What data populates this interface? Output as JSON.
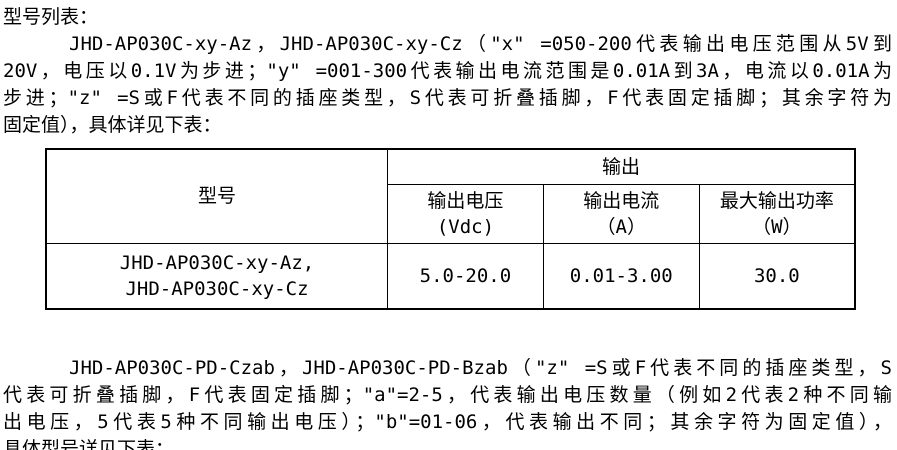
{
  "colors": {
    "text": "#000000",
    "page_background": "#ffffff",
    "table_border": "#000000"
  },
  "doc": {
    "heading": "型号列表：",
    "para1": {
      "lines": [
        "JHD-AP030C-xy-Az，JHD-AP030C-xy-Cz（\"x\" =050-200代表输出电压范围从5V到",
        "20V，电压以0.1V为步进；\"y\" =001-300代表输出电流范围是0.01A到3A，电流以0.01A为",
        "步进；\"z\" =S或F代表不同的插座类型，S代表可折叠插脚，F代表固定插脚；其余字符为",
        "固定值），具体详见下表："
      ]
    },
    "table": {
      "model_column_header": "型号",
      "output_group_header": "输出",
      "sub_headers": [
        {
          "line1": "输出电压",
          "line2": "(Vdc)"
        },
        {
          "line1": "输出电流",
          "line2": "（A）"
        },
        {
          "line1": "最大输出功率",
          "line2": "（W）"
        }
      ],
      "rows": [
        {
          "model_line1": "JHD-AP030C-xy-Az,",
          "model_line2": "JHD-AP030C-xy-Cz",
          "voltage": "5.0-20.0",
          "current": "0.01-3.00",
          "power": "30.0"
        }
      ]
    },
    "para2": {
      "lines": [
        "JHD-AP030C-PD-Czab，JHD-AP030C-PD-Bzab（\"z\" =S或F代表不同的插座类型，S",
        "代表可折叠插脚，F代表固定插脚；\"a\"=2-5，代表输出电压数量（例如2代表2种不同输",
        "出电压，5代表5种不同输出电压）；\"b\"=01-06，代表输出不同；其余字符为固定值），",
        "具体型号详见下表："
      ]
    }
  }
}
